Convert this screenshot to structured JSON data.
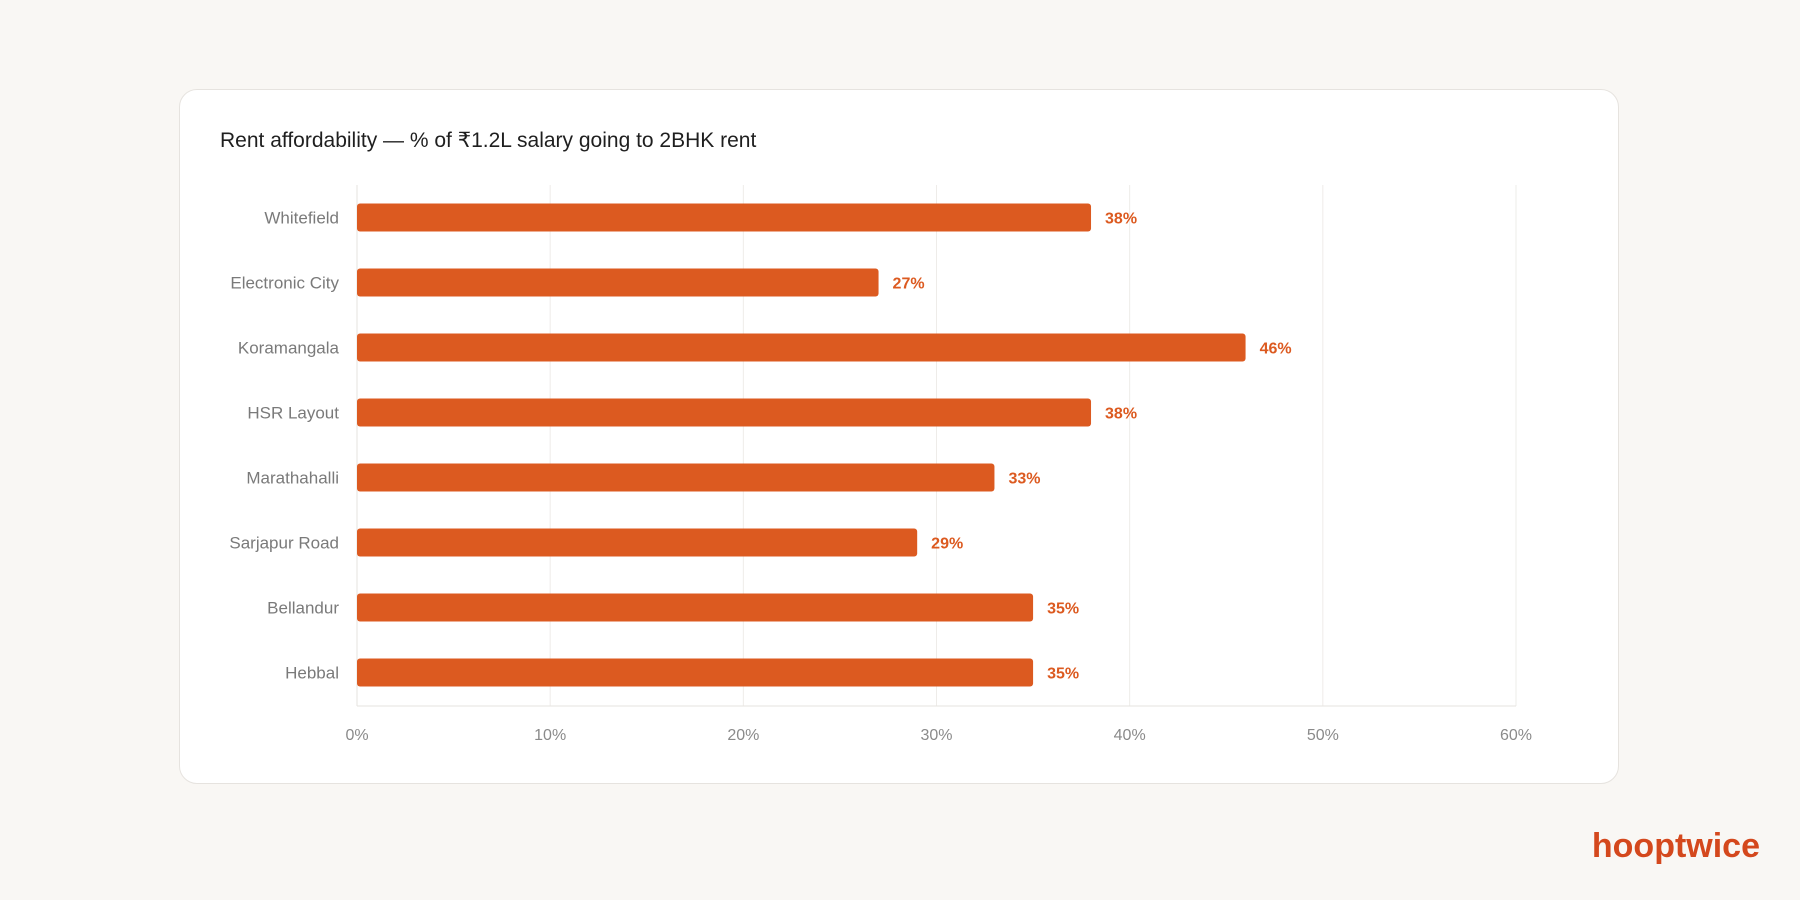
{
  "chart_data": {
    "type": "bar",
    "orientation": "horizontal",
    "title": "Rent affordability — % of ₹1.2L salary going to 2BHK rent",
    "categories": [
      "Whitefield",
      "Electronic City",
      "Koramangala",
      "HSR Layout",
      "Marathahalli",
      "Sarjapur Road",
      "Bellandur",
      "Hebbal"
    ],
    "values": [
      38,
      27,
      46,
      38,
      33,
      29,
      35,
      35
    ],
    "data_labels": [
      "38%",
      "27%",
      "46%",
      "38%",
      "33%",
      "29%",
      "35%",
      "35%"
    ],
    "xlim": [
      0,
      60
    ],
    "x_ticks": [
      0,
      10,
      20,
      30,
      40,
      50,
      60
    ],
    "x_tick_labels": [
      "0%",
      "10%",
      "20%",
      "30%",
      "40%",
      "50%",
      "60%"
    ],
    "xlabel": "",
    "ylabel": "",
    "grid": "vertical",
    "bar_color": "#dc5a20",
    "label_color": "#dc5a20"
  },
  "brand": {
    "name": "hooptwice",
    "color": "#d4481d"
  }
}
